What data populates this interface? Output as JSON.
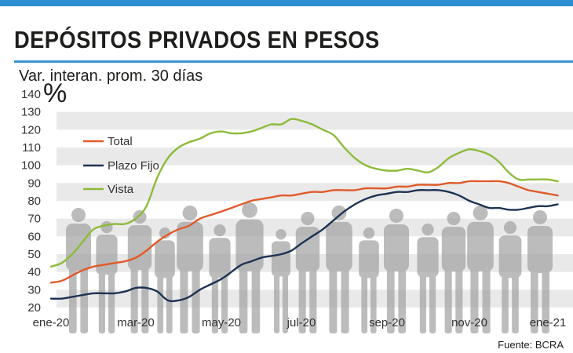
{
  "header": {
    "title": "DEPÓSITOS PRIVADOS EN PESOS",
    "subtitle": "Var. interan. prom. 30 días",
    "unit_symbol": "%",
    "source": "Fuente: BCRA"
  },
  "colors": {
    "stripe": "#2a8ed0",
    "rule": "#3a93cf",
    "band": "#e9e9e9",
    "silhouette": "#a6a6a6",
    "Total": "#e05a2b",
    "Plazo Fijo": "#1c3353",
    "Vista": "#8cbb3a"
  },
  "chart_data": {
    "type": "line",
    "title": "DEPÓSITOS PRIVADOS EN PESOS",
    "subtitle": "Var. interan. prom. 30 días",
    "ylabel": "%",
    "xlabel": "",
    "ylim": [
      20,
      140
    ],
    "y_ticks": [
      20,
      30,
      40,
      50,
      60,
      70,
      80,
      90,
      100,
      110,
      120,
      130,
      140
    ],
    "x_ticks": [
      "ene-20",
      "mar-20",
      "may-20",
      "jul-20",
      "sep-20",
      "nov-20",
      "ene-21"
    ],
    "legend": [
      "Total",
      "Plazo Fijo",
      "Vista"
    ],
    "legend_position": "top-left",
    "grid": "horizontal bands",
    "x": [
      0,
      0.25,
      0.5,
      0.75,
      1,
      1.25,
      1.5,
      1.75,
      2,
      2.25,
      2.5,
      2.75,
      3,
      3.25,
      3.5,
      3.75,
      4,
      4.25,
      4.5,
      4.75,
      5,
      5.25,
      5.5,
      5.75,
      6,
      6.25,
      6.5,
      6.75,
      7,
      7.25,
      7.5,
      7.75,
      8,
      8.25,
      8.5,
      8.75,
      9,
      9.25,
      9.5,
      9.75,
      10,
      10.25,
      10.5,
      10.75,
      11,
      11.25,
      11.5,
      11.75,
      12,
      12.25
    ],
    "series": [
      {
        "name": "Total",
        "values": [
          34,
          35,
          38,
          41,
          43,
          44,
          45,
          46,
          48,
          52,
          57,
          61,
          64,
          66,
          70,
          72,
          74,
          76,
          78,
          80,
          81,
          82,
          83,
          83,
          84,
          85,
          85,
          86,
          86,
          86,
          87,
          87,
          87,
          88,
          88,
          89,
          89,
          89,
          90,
          90,
          91,
          91,
          91,
          91,
          90,
          88,
          86,
          85,
          84,
          83
        ]
      },
      {
        "name": "Plazo Fijo",
        "values": [
          25,
          25,
          26,
          27,
          28,
          28,
          28,
          29,
          31,
          31,
          29,
          24,
          24,
          26,
          30,
          33,
          36,
          40,
          44,
          46,
          48,
          49,
          50,
          52,
          56,
          60,
          64,
          69,
          74,
          78,
          81,
          83,
          84,
          85,
          85,
          86,
          86,
          86,
          85,
          83,
          80,
          78,
          76,
          76,
          75,
          75,
          76,
          77,
          77,
          78
        ]
      },
      {
        "name": "Vista",
        "values": [
          43,
          45,
          50,
          57,
          64,
          66,
          67,
          67,
          70,
          77,
          93,
          104,
          110,
          113,
          115,
          118,
          119,
          118,
          118,
          119,
          121,
          123,
          123,
          126,
          125,
          123,
          120,
          117,
          110,
          104,
          100,
          98,
          97,
          97,
          98,
          97,
          96,
          99,
          104,
          107,
          109,
          108,
          106,
          102,
          96,
          92,
          92,
          92,
          92,
          91
        ]
      }
    ]
  }
}
